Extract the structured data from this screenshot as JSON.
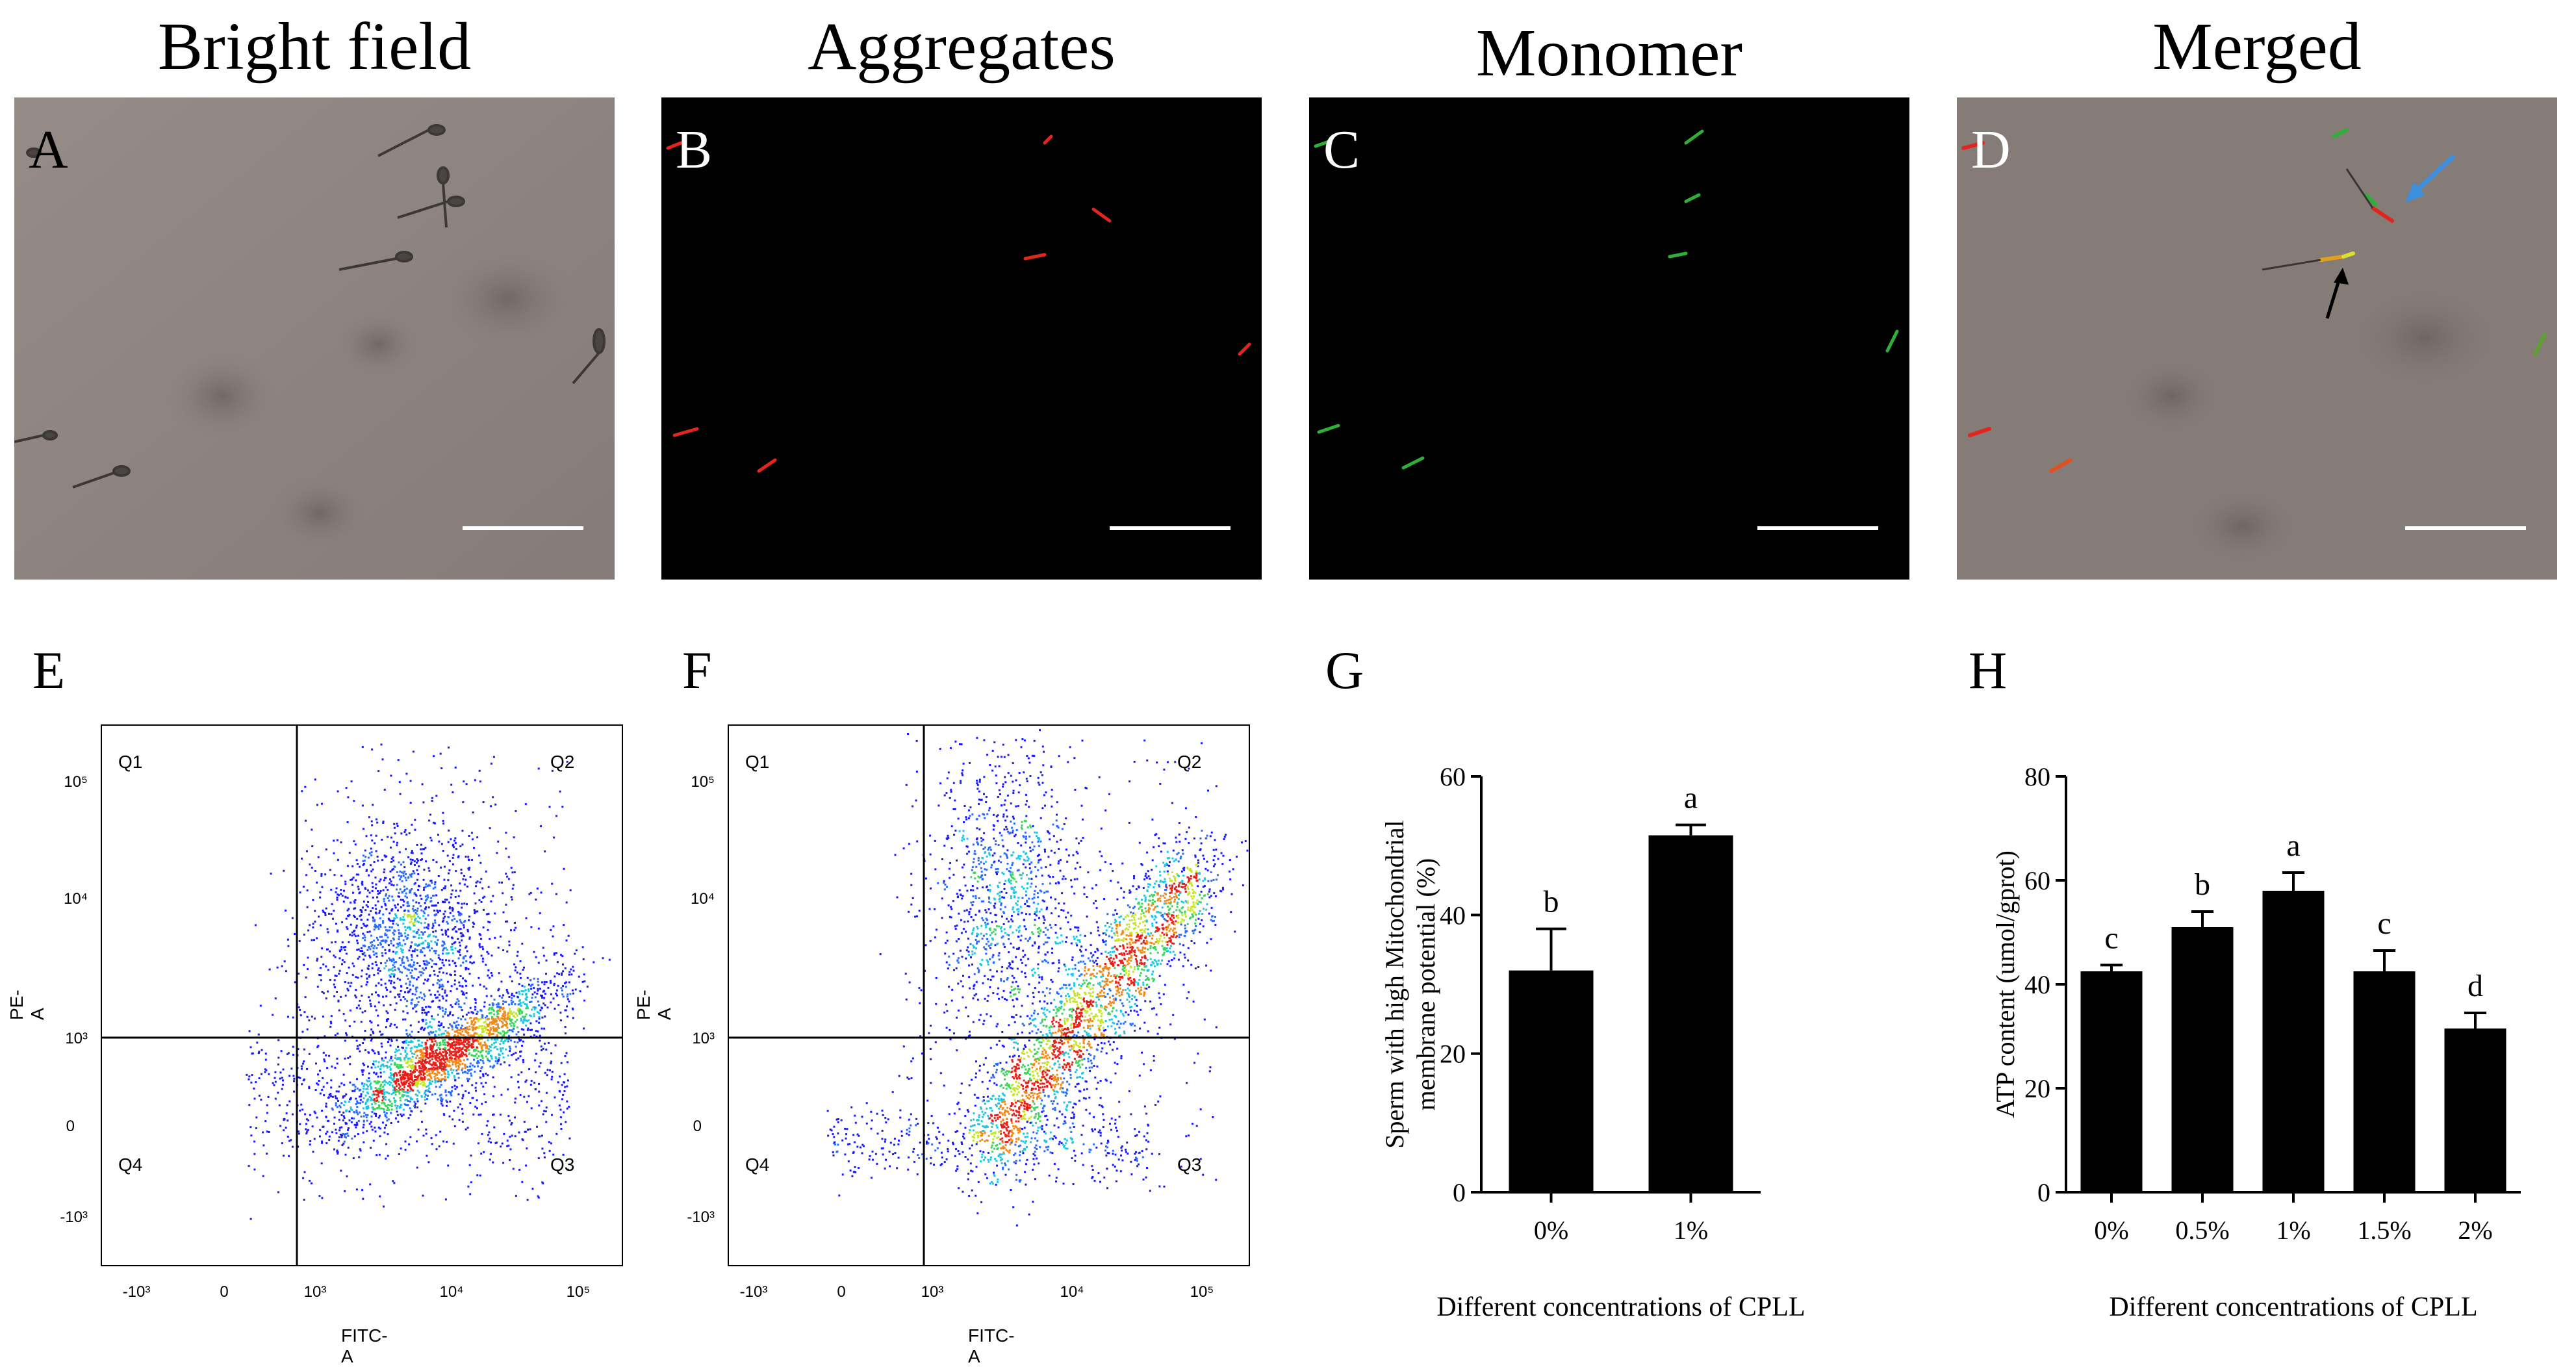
{
  "column_titles": [
    "Bright field",
    "Aggregates",
    "Monomer",
    "Merged"
  ],
  "panel_letters": [
    "A",
    "B",
    "C",
    "D",
    "E",
    "F",
    "G",
    "H"
  ],
  "colors": {
    "brightfield_bg": "#8b817d",
    "fluorescence_bg": "#000000",
    "aggregate_red": "#e0261f",
    "monomer_green": "#2fae3a",
    "merged_bg": "#857c78",
    "scale_bar": "#ffffff",
    "arrow_blue": "#3d8fe0",
    "arrow_black": "#000000",
    "bar_fill": "#000000"
  },
  "flow_cytometry": [
    {
      "letter": "E",
      "quadrants": [
        "Q1",
        "Q2",
        "Q3",
        "Q4"
      ],
      "y_axis_label": "PE-A",
      "x_axis_label": "FITC-A",
      "y_ticks": [
        "10⁵",
        "10⁴",
        "10³",
        "0",
        "-10³"
      ],
      "x_ticks": [
        "-10³",
        "0",
        "10³",
        "10⁴",
        "10⁵"
      ]
    },
    {
      "letter": "F",
      "quadrants": [
        "Q1",
        "Q2",
        "Q3",
        "Q4"
      ],
      "y_axis_label": "PE-A",
      "x_axis_label": "FITC-A",
      "y_ticks": [
        "10⁵",
        "10⁴",
        "10³",
        "0",
        "-10³"
      ],
      "x_ticks": [
        "-10³",
        "0",
        "10³",
        "10⁴",
        "10⁵"
      ]
    }
  ],
  "chart_data": [
    {
      "type": "bar",
      "panel": "G",
      "categories": [
        "0%",
        "1%"
      ],
      "values": [
        32,
        51.5
      ],
      "errors": [
        6,
        1.5
      ],
      "significance": [
        "b",
        "a"
      ],
      "ylabel_lines": [
        "Sperm with high Mitochondrial",
        "membrane potential  (%)"
      ],
      "xlabel": "Different concentrations of CPLL",
      "ylim": [
        0,
        60
      ],
      "yticks": [
        0,
        20,
        40,
        60
      ]
    },
    {
      "type": "bar",
      "panel": "H",
      "categories": [
        "0%",
        "0.5%",
        "1%",
        "1.5%",
        "2%"
      ],
      "values": [
        42.5,
        51,
        58,
        42.5,
        31.5
      ],
      "errors": [
        1.2,
        3,
        3.5,
        4,
        3
      ],
      "significance": [
        "c",
        "b",
        "a",
        "c",
        "d"
      ],
      "ylabel": "ATP content (umol/gprot)",
      "xlabel": "Different concentrations of CPLL",
      "ylim": [
        0,
        80
      ],
      "yticks": [
        0,
        20,
        40,
        60,
        80
      ]
    }
  ]
}
